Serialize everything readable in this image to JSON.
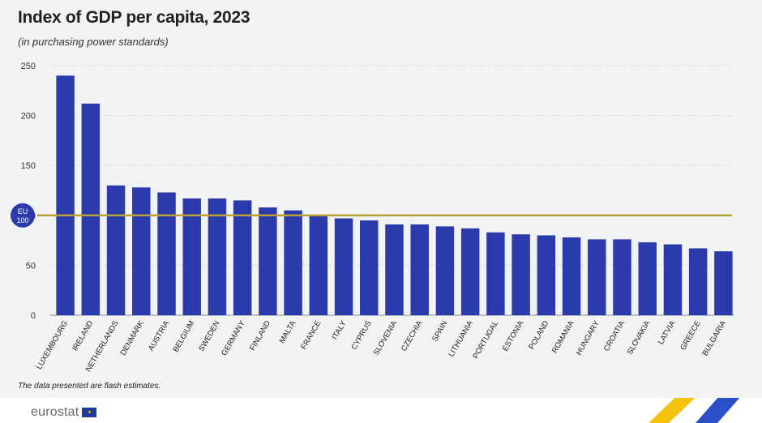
{
  "chart_data": {
    "type": "bar",
    "title": "Index of GDP per capita, 2023",
    "subtitle": "(in purchasing power standards)",
    "categories": [
      "LUXEMBOURG",
      "IRELAND",
      "NETHERLANDS",
      "DENMARK",
      "AUSTRIA",
      "BELGIUM",
      "SWEDEN",
      "GERMANY",
      "FINLAND",
      "MALTA",
      "FRANCE",
      "ITALY",
      "CYPRUS",
      "SLOVENIA",
      "CZECHIA",
      "SPAIN",
      "LITHUANIA",
      "PORTUGAL",
      "ESTONIA",
      "POLAND",
      "ROMANIA",
      "HUNGARY",
      "CROATIA",
      "SLOVAKIA",
      "LATVIA",
      "GREECE",
      "BULGARIA"
    ],
    "values": [
      240,
      212,
      130,
      128,
      123,
      117,
      117,
      115,
      108,
      105,
      100,
      97,
      95,
      91,
      91,
      89,
      87,
      83,
      81,
      80,
      78,
      76,
      76,
      73,
      71,
      67,
      64
    ],
    "ylim": [
      0,
      250
    ],
    "yticks": [
      0,
      50,
      100,
      150,
      200,
      250
    ],
    "reference_line": {
      "value": 100,
      "label_line1": "EU",
      "label_line2": "100"
    },
    "xlabel": "",
    "ylabel": "",
    "grid": true,
    "colors": {
      "bar": "#2b3bab",
      "reference": "#b8a13a",
      "grid": "#c9cbd1",
      "background": "#f2f3f5"
    }
  },
  "footnote": "The data presented are flash estimates.",
  "branding": {
    "logo_text": "eurostat",
    "flag_symbol": "✦"
  }
}
